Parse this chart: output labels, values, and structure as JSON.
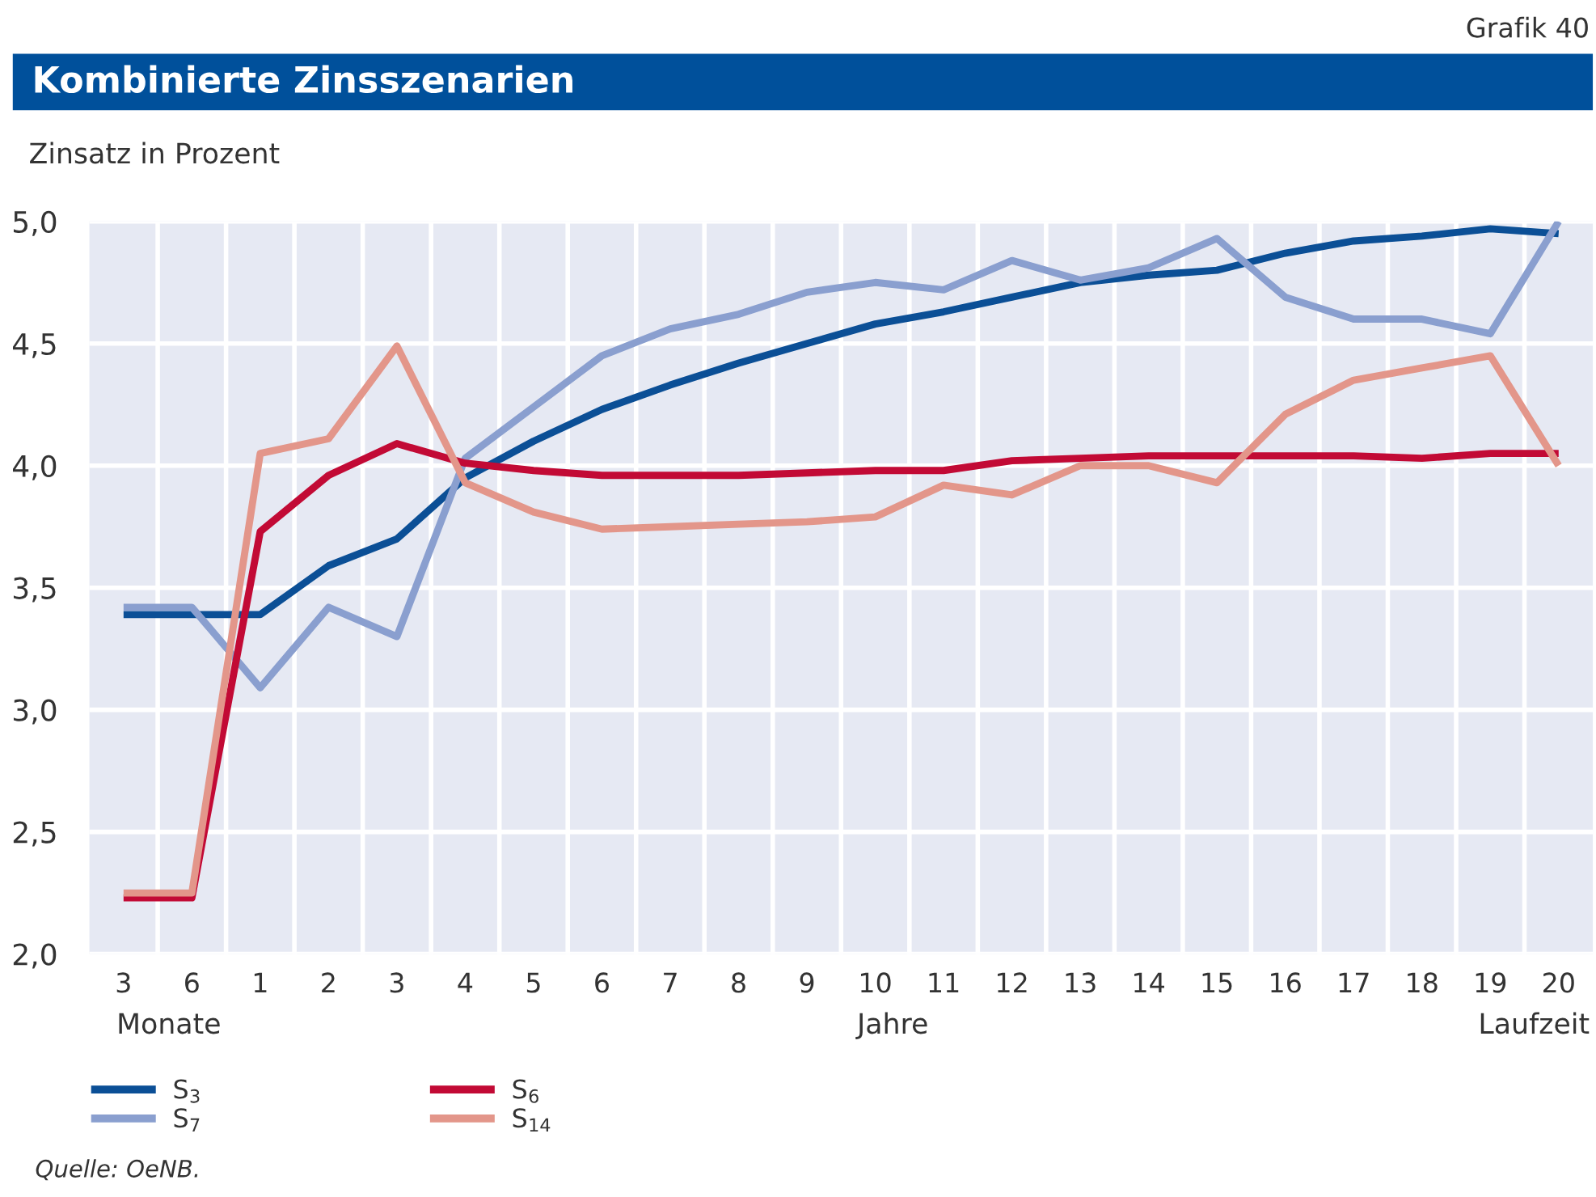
{
  "chart_data": {
    "type": "line",
    "title": "Kombinierte Zinsszenarien",
    "ylabel": "Zinsatz in Prozent",
    "xlabel": "Laufzeit",
    "categories": [
      "3",
      "6",
      "1",
      "2",
      "3",
      "4",
      "5",
      "6",
      "7",
      "8",
      "9",
      "10",
      "11",
      "12",
      "13",
      "14",
      "15",
      "16",
      "17",
      "18",
      "19",
      "20"
    ],
    "series": [
      {
        "name": "S$_{3}$",
        "color": "#0b4f96",
        "values": [
          3.39,
          3.39,
          3.39,
          3.59,
          3.7,
          3.95,
          4.1,
          4.23,
          4.33,
          4.42,
          4.5,
          4.58,
          4.63,
          4.69,
          4.75,
          4.78,
          4.8,
          4.87,
          4.92,
          4.94,
          4.97,
          4.95
        ]
      },
      {
        "name": "S$_{7}$",
        "color": "#8a9fcf",
        "values": [
          3.42,
          3.42,
          3.09,
          3.42,
          3.3,
          4.03,
          4.24,
          4.45,
          4.56,
          4.62,
          4.71,
          4.75,
          4.72,
          4.84,
          4.76,
          4.81,
          4.93,
          4.69,
          4.6,
          4.6,
          4.54,
          5.0
        ]
      },
      {
        "name": "S$_{6}$",
        "color": "#c20a35",
        "values": [
          2.23,
          2.23,
          3.73,
          3.96,
          4.09,
          4.01,
          3.98,
          3.96,
          3.96,
          3.96,
          3.97,
          3.98,
          3.98,
          4.02,
          4.03,
          4.04,
          4.04,
          4.04,
          4.04,
          4.03,
          4.05,
          4.05
        ]
      },
      {
        "name": "S$_{14}$",
        "color": "#e3968a",
        "values": [
          2.25,
          2.25,
          4.05,
          4.11,
          4.49,
          3.93,
          3.81,
          3.74,
          3.75,
          3.76,
          3.77,
          3.79,
          3.92,
          3.88,
          4.0,
          4.0,
          3.93,
          4.21,
          4.35,
          4.4,
          4.45,
          4.0
        ]
      }
    ],
    "ylim": [
      2.0,
      5.0
    ],
    "yticks": [
      {
        "value": 2.0,
        "label": "2,0"
      },
      {
        "value": 2.5,
        "label": "2,5"
      },
      {
        "value": 3.0,
        "label": "3,0"
      },
      {
        "value": 3.5,
        "label": "3,5"
      },
      {
        "value": 4.0,
        "label": "4,0"
      },
      {
        "value": 4.5,
        "label": "4,5"
      },
      {
        "value": 5.0,
        "label": "5,0"
      }
    ],
    "grid": true,
    "legend": "bottom left",
    "marker": "none",
    "line_style": "solid",
    "annotations": [
      "Grafik 40",
      "Monate",
      "Jahre",
      "Quelle: OeNB."
    ]
  }
}
